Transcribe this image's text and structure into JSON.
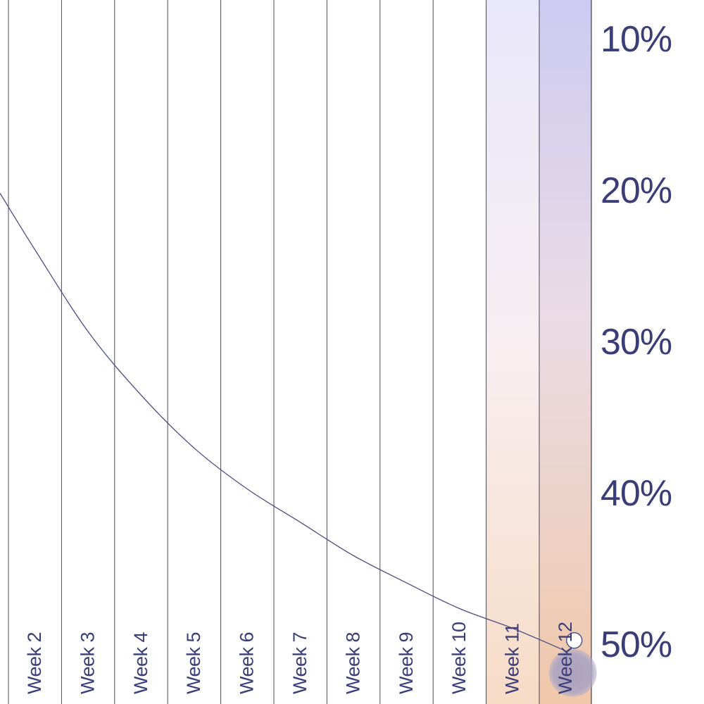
{
  "chart_data": {
    "type": "line",
    "title": "",
    "xlabel": "",
    "ylabel": "",
    "categories": [
      "Week 2",
      "Week 3",
      "Week 4",
      "Week 5",
      "Week 6",
      "Week 7",
      "Week 8",
      "Week 9",
      "Week 10",
      "Week 11",
      "Week 12"
    ],
    "highlighted_categories": [
      "Week 11",
      "Week 12"
    ],
    "y_ticks": [
      {
        "value": 10,
        "label": "10%"
      },
      {
        "value": 20,
        "label": "20%"
      },
      {
        "value": 30,
        "label": "30%"
      },
      {
        "value": 40,
        "label": "40%"
      },
      {
        "value": 50,
        "label": "50%"
      }
    ],
    "y_axis_position": "right",
    "y_inverted": true,
    "ylim": [
      7.5,
      54
    ],
    "grid": true,
    "series": [
      {
        "x": [
          "Week 2",
          "Week 3",
          "Week 4",
          "Week 5",
          "Week 6",
          "Week 7",
          "Week 8",
          "Week 9",
          "Week 10",
          "Week 11",
          "Week 12"
        ],
        "values": [
          24.0,
          29.4,
          33.6,
          37.1,
          39.8,
          42.0,
          44.2,
          46.0,
          47.7,
          49.0,
          50.5
        ],
        "marker": {
          "x": "Week 12",
          "value": 49.8
        }
      }
    ],
    "colors": {
      "line": "#4a4c86",
      "grid": "#2b2b3a",
      "text": "#3a3d78",
      "highlight_top": "#cfcdf2",
      "highlight_bottom": "#f0c6a8",
      "shadow_dot": "#a8a0c0"
    }
  }
}
